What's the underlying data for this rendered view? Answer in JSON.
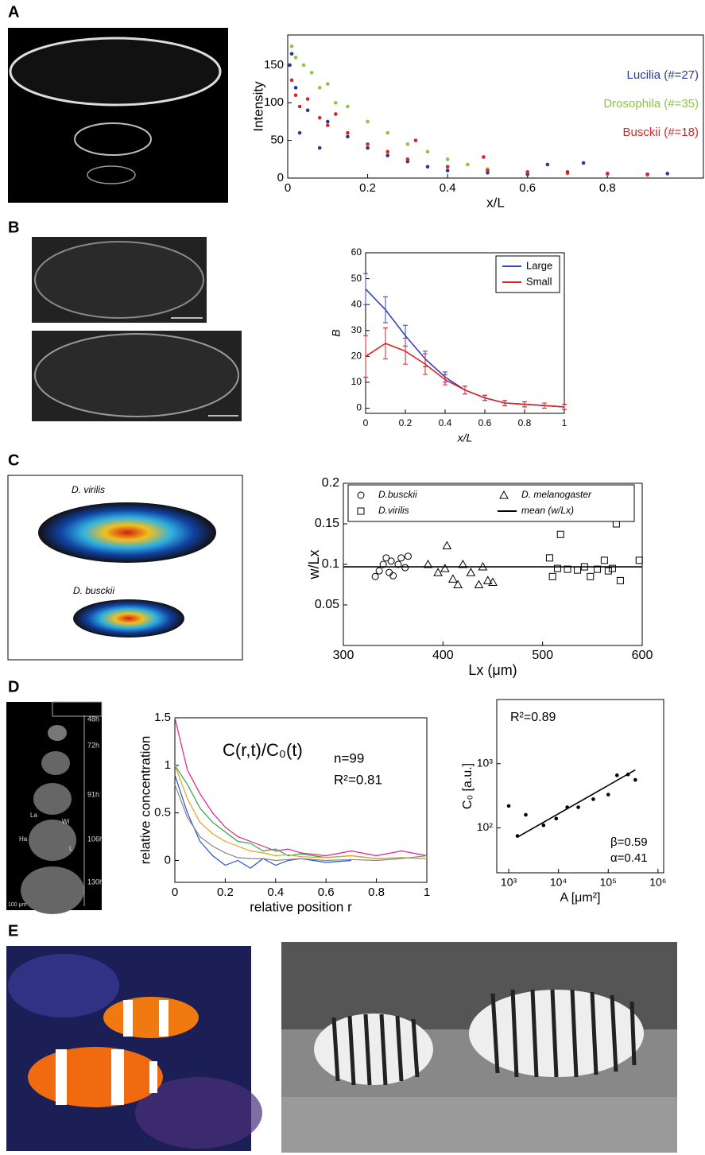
{
  "panel_labels": [
    "A",
    "B",
    "C",
    "D",
    "E"
  ],
  "image_labels": {
    "C": [
      "D. virilis",
      "D. busckii"
    ],
    "D": [
      "48h",
      "72h",
      "91h",
      "106h",
      "130h",
      "La",
      "Ha",
      "Wi",
      "L",
      "100 μm"
    ]
  },
  "chart_data": [
    {
      "type": "scatter",
      "xlabel": "x/L",
      "ylabel": "Intensity",
      "xlim": [
        0,
        1.04
      ],
      "ylim": [
        0,
        190
      ],
      "xticks": [
        0,
        0.2,
        0.4,
        0.6,
        0.8
      ],
      "yticks": [
        0,
        50,
        100,
        150
      ],
      "legend": "upper right",
      "series": [
        {
          "name": "Lucilia (#=27)",
          "color": "#2b3990",
          "marker": "dot",
          "x": [
            0.005,
            0.01,
            0.02,
            0.03,
            0.05,
            0.08,
            0.1,
            0.15,
            0.2,
            0.25,
            0.3,
            0.35,
            0.4,
            0.5,
            0.6,
            0.65,
            0.7,
            0.74,
            0.8,
            0.9,
            0.95
          ],
          "values": [
            150,
            165,
            120,
            60,
            90,
            40,
            75,
            55,
            40,
            30,
            22,
            15,
            10,
            7,
            5,
            18,
            8,
            20,
            6,
            5,
            6
          ]
        },
        {
          "name": "Drosophila (#=35)",
          "color": "#8dc63f",
          "marker": "dot",
          "x": [
            0.01,
            0.02,
            0.04,
            0.06,
            0.08,
            0.1,
            0.12,
            0.15,
            0.2,
            0.25,
            0.3,
            0.35,
            0.4,
            0.45,
            0.5,
            0.6,
            0.7,
            0.8,
            0.9
          ],
          "values": [
            175,
            160,
            150,
            140,
            120,
            125,
            100,
            95,
            75,
            60,
            45,
            35,
            25,
            18,
            12,
            8,
            6,
            5,
            4
          ]
        },
        {
          "name": "Busckii (#=18)",
          "color": "#d7262a",
          "marker": "dot",
          "x": [
            0.01,
            0.02,
            0.03,
            0.05,
            0.08,
            0.1,
            0.12,
            0.15,
            0.2,
            0.25,
            0.3,
            0.32,
            0.4,
            0.49,
            0.5,
            0.6,
            0.7,
            0.8,
            0.9
          ],
          "values": [
            130,
            110,
            95,
            105,
            80,
            70,
            85,
            60,
            45,
            35,
            25,
            50,
            15,
            28,
            10,
            8,
            7,
            6,
            5
          ]
        }
      ]
    },
    {
      "type": "line",
      "xlabel": "x/L",
      "ylabel": "B",
      "xlim": [
        0,
        1
      ],
      "ylim": [
        -2,
        60
      ],
      "xticks": [
        0,
        0.2,
        0.4,
        0.6,
        0.8,
        1
      ],
      "yticks": [
        0,
        10,
        20,
        30,
        40,
        50,
        60
      ],
      "legend": "upper right",
      "x": [
        0,
        0.1,
        0.2,
        0.3,
        0.4,
        0.5,
        0.6,
        0.7,
        0.8,
        0.9,
        1
      ],
      "series": [
        {
          "name": "Large",
          "color": "#3344bb",
          "values": [
            46,
            38,
            28,
            19,
            12,
            7,
            4,
            2,
            1.5,
            1,
            0.5
          ],
          "errors": [
            6,
            5,
            4,
            3,
            2,
            1.5,
            1,
            1,
            1,
            1,
            1
          ]
        },
        {
          "name": "Small",
          "color": "#dd2222",
          "values": [
            20,
            25,
            22,
            17,
            11,
            7,
            4,
            2,
            1.5,
            1,
            0.5
          ],
          "errors": [
            8,
            6,
            5,
            4,
            2,
            1.5,
            1,
            1,
            1,
            1,
            1
          ]
        }
      ]
    },
    {
      "type": "scatter",
      "xlabel": "Lx (μm)",
      "ylabel": "w/Lx",
      "xlim": [
        300,
        600
      ],
      "ylim": [
        0,
        0.2
      ],
      "xticks": [
        300,
        400,
        500,
        600
      ],
      "yticks": [
        0.05,
        0.1,
        0.15,
        0.2
      ],
      "legend": "upper left",
      "series": [
        {
          "name": "D.busckii",
          "color": "#000000",
          "marker": "circle",
          "x": [
            332,
            336,
            340,
            343,
            346,
            348,
            350,
            355,
            358,
            362,
            365
          ],
          "values": [
            0.085,
            0.092,
            0.1,
            0.108,
            0.09,
            0.104,
            0.086,
            0.1,
            0.108,
            0.096,
            0.11
          ]
        },
        {
          "name": "D.virilis",
          "color": "#000000",
          "marker": "square",
          "x": [
            507,
            510,
            515,
            518,
            525,
            535,
            542,
            548,
            555,
            562,
            566,
            570,
            574,
            578,
            597
          ],
          "values": [
            0.108,
            0.085,
            0.095,
            0.137,
            0.094,
            0.093,
            0.097,
            0.085,
            0.094,
            0.105,
            0.092,
            0.095,
            0.15,
            0.08,
            0.105
          ]
        },
        {
          "name": "D. melanogaster",
          "color": "#000000",
          "marker": "triangle",
          "x": [
            385,
            395,
            402,
            404,
            410,
            415,
            420,
            428,
            436,
            440,
            445,
            450
          ],
          "values": [
            0.1,
            0.09,
            0.095,
            0.123,
            0.082,
            0.075,
            0.1,
            0.09,
            0.075,
            0.097,
            0.08,
            0.078
          ]
        },
        {
          "name": "mean (w/Lx)",
          "color": "#000000",
          "style": "line",
          "x": [
            300,
            600
          ],
          "values": [
            0.097,
            0.097
          ]
        }
      ]
    },
    {
      "type": "line",
      "xlabel": "relative position r",
      "ylabel": "relative concentration",
      "xlim": [
        0,
        1
      ],
      "ylim": [
        -0.23,
        1.5
      ],
      "xticks": [
        0,
        0.2,
        0.4,
        0.6,
        0.8,
        1
      ],
      "yticks": [
        0,
        0.5,
        1,
        1.5
      ],
      "annotations": [
        "C(r,t)/C₀(t)",
        "n=99",
        "R²=0.81"
      ],
      "x": [
        0,
        0.05,
        0.1,
        0.15,
        0.2,
        0.25,
        0.3,
        0.35,
        0.4,
        0.45,
        0.5,
        0.6,
        0.7,
        0.8,
        0.9,
        1
      ],
      "series": [
        {
          "color": "#e0218a",
          "values": [
            1.5,
            0.95,
            0.7,
            0.5,
            0.35,
            0.25,
            0.2,
            0.15,
            0.1,
            0.12,
            0.08,
            0.05,
            0.1,
            0.05,
            0.1,
            0.05
          ]
        },
        {
          "color": "#2aa84a",
          "values": [
            1,
            0.8,
            0.55,
            0.4,
            0.3,
            0.2,
            0.18,
            0.1,
            0.12,
            0.05,
            0.07,
            0.03,
            0.05,
            0.02,
            0.03,
            0.02
          ]
        },
        {
          "color": "#2255cc",
          "values": [
            0.9,
            0.5,
            0.2,
            0.05,
            -0.05,
            0,
            -0.08,
            0.02,
            -0.05,
            0,
            0.02,
            -0.02,
            0,
            null,
            null,
            null
          ]
        },
        {
          "color": "#e8a020",
          "values": [
            1,
            0.65,
            0.4,
            0.28,
            0.2,
            0.15,
            0.1,
            0.08,
            0.05,
            0.06,
            0.04,
            0.03,
            0.05,
            0.02,
            0.03,
            0.02
          ]
        },
        {
          "color": "#888888",
          "values": [
            0.8,
            0.45,
            0.25,
            0.15,
            0.08,
            0.03,
            0.02,
            0.02,
            0,
            0.01,
            0.02,
            0,
            0.01,
            0,
            0.02,
            0.05
          ]
        }
      ]
    },
    {
      "type": "scatter",
      "xlabel": "A [μm²]",
      "ylabel": "C₀ [a.u.]",
      "xscale": "log",
      "yscale": "log",
      "xlim": [
        575,
        1300000
      ],
      "ylim": [
        20,
        10000
      ],
      "xticks": [
        {
          "value": 1000,
          "label": "10³"
        },
        {
          "value": 10000,
          "label": "10⁴"
        },
        {
          "value": 100000,
          "label": "10⁵"
        },
        {
          "value": 1000000,
          "label": "10⁶"
        }
      ],
      "yticks": [
        {
          "value": 100,
          "label": "10²"
        },
        {
          "value": 1000,
          "label": "10³"
        }
      ],
      "annotations": [
        "R²=0.89",
        "β=0.59",
        "α=0.41"
      ],
      "series": [
        {
          "color": "#000000",
          "marker": "dot",
          "x": [
            1000,
            1500,
            2200,
            5000,
            9000,
            15000,
            25000,
            50000,
            100000,
            150000,
            250000,
            350000
          ],
          "values": [
            220,
            75,
            160,
            110,
            140,
            210,
            210,
            280,
            330,
            660,
            680,
            560
          ]
        },
        {
          "color": "#000000",
          "style": "line",
          "x": [
            1500,
            350000
          ],
          "values": [
            72,
            800
          ]
        }
      ]
    }
  ]
}
